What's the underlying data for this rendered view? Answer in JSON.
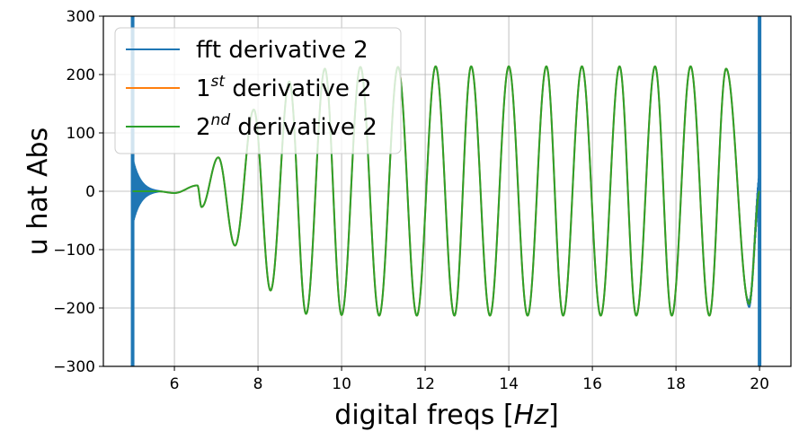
{
  "chart_data": {
    "type": "line",
    "xlabel": "digital freqs [",
    "xlabel_math": "Hz",
    "xlabel_close": "]",
    "ylabel": "u hat Abs",
    "xlim": [
      4.3,
      20.75
    ],
    "ylim": [
      -300,
      300
    ],
    "xticks": [
      "6",
      "8",
      "10",
      "12",
      "14",
      "16",
      "18",
      "20"
    ],
    "xtick_values": [
      6,
      8,
      10,
      12,
      14,
      16,
      18,
      20
    ],
    "yticks": [
      "300",
      "200",
      "100",
      "0",
      "−100",
      "−200",
      "−300"
    ],
    "ytick_values": [
      300,
      200,
      100,
      0,
      -100,
      -200,
      -300
    ],
    "grid": true,
    "legend_position": "top-left",
    "series": [
      {
        "name": "fft derivative 2",
        "color": "#1f77b4"
      },
      {
        "name_base": "1",
        "name_sup": "st",
        "name_rest": " derivative 2",
        "color": "#ff7f0e"
      },
      {
        "name_base": "2",
        "name_sup": "nd",
        "name_rest": " derivative 2",
        "color": "#2ca02c"
      }
    ],
    "signal": {
      "x_range": [
        5.0,
        20.0
      ],
      "note_peaks": [
        [
          6.55,
          10
        ],
        [
          7.05,
          58
        ],
        [
          7.9,
          140
        ],
        [
          8.75,
          188
        ],
        [
          9.6,
          210
        ],
        [
          10.45,
          213
        ],
        [
          11.35,
          213
        ],
        [
          12.25,
          214
        ],
        [
          13.1,
          214
        ],
        [
          14.0,
          214
        ],
        [
          14.9,
          214
        ],
        [
          15.75,
          214
        ],
        [
          16.65,
          214
        ],
        [
          17.5,
          214
        ],
        [
          18.35,
          214
        ],
        [
          19.2,
          210
        ]
      ],
      "troughs": [
        [
          6.65,
          -27
        ],
        [
          7.45,
          -93
        ],
        [
          8.3,
          -170
        ],
        [
          9.15,
          -210
        ],
        [
          10.0,
          -212
        ],
        [
          10.9,
          -213
        ],
        [
          11.8,
          -213
        ],
        [
          12.7,
          -213
        ],
        [
          13.55,
          -213
        ],
        [
          14.45,
          -213
        ],
        [
          15.3,
          -213
        ],
        [
          16.2,
          -213
        ],
        [
          17.05,
          -213
        ],
        [
          17.9,
          -213
        ],
        [
          18.8,
          -213
        ],
        [
          19.75,
          -193
        ]
      ]
    }
  }
}
